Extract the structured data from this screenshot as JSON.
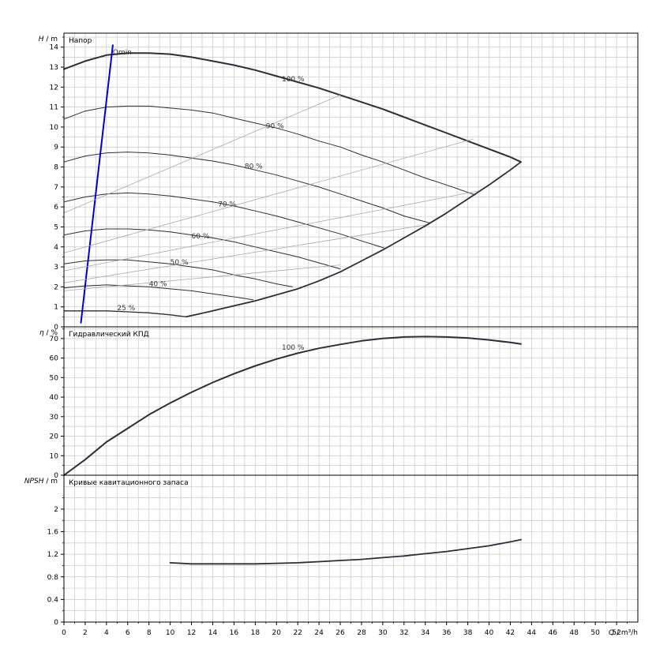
{
  "chart_data": [
    {
      "type": "line",
      "title": "Напор",
      "ylabel_var": "H",
      "ylabel_unit": "m",
      "xlim": [
        0,
        54
      ],
      "ylim": [
        0,
        14.7
      ],
      "xticks": [
        0,
        2,
        4,
        6,
        8,
        10,
        12,
        14,
        16,
        18,
        20,
        22,
        24,
        26,
        28,
        30,
        32,
        34,
        36,
        38,
        40,
        42,
        44,
        46,
        48,
        50,
        52
      ],
      "yticks": [
        0,
        1,
        2,
        3,
        4,
        5,
        6,
        7,
        8,
        9,
        10,
        11,
        12,
        13,
        14
      ],
      "grid": true,
      "series": [
        {
          "name": "100 %",
          "label_at": [
            20.5,
            12.4
          ],
          "width": 2.0,
          "x": [
            0,
            2,
            4,
            6,
            8,
            10,
            12,
            14,
            16,
            18,
            20,
            22,
            24,
            26,
            28,
            30,
            32,
            34,
            36,
            38,
            40,
            42,
            43
          ],
          "y": [
            12.9,
            13.3,
            13.6,
            13.7,
            13.7,
            13.65,
            13.5,
            13.3,
            13.1,
            12.85,
            12.55,
            12.25,
            11.95,
            11.6,
            11.25,
            10.9,
            10.5,
            10.1,
            9.7,
            9.3,
            8.9,
            8.5,
            8.25
          ]
        },
        {
          "name": "90 %",
          "label_at": [
            19.0,
            10.05
          ],
          "width": 1.0,
          "x": [
            0,
            2,
            4,
            6,
            8,
            10,
            12,
            14,
            16,
            18,
            20,
            22,
            24,
            26,
            28,
            30,
            32,
            34,
            36,
            38.7
          ],
          "y": [
            10.4,
            10.8,
            11.0,
            11.05,
            11.05,
            10.95,
            10.85,
            10.7,
            10.45,
            10.2,
            9.95,
            9.65,
            9.3,
            9.0,
            8.6,
            8.25,
            7.85,
            7.45,
            7.1,
            6.6
          ]
        },
        {
          "name": "80 %",
          "label_at": [
            17.0,
            8.05
          ],
          "width": 1.0,
          "x": [
            0,
            2,
            4,
            6,
            8,
            10,
            12,
            14,
            16,
            18,
            20,
            22,
            24,
            26,
            28,
            30,
            32,
            34.4
          ],
          "y": [
            8.25,
            8.55,
            8.7,
            8.75,
            8.7,
            8.6,
            8.45,
            8.3,
            8.1,
            7.85,
            7.6,
            7.3,
            7.0,
            6.65,
            6.3,
            5.95,
            5.55,
            5.2
          ]
        },
        {
          "name": "70 %",
          "label_at": [
            14.5,
            6.15
          ],
          "width": 1.0,
          "x": [
            0,
            2,
            4,
            6,
            8,
            10,
            12,
            14,
            16,
            18,
            20,
            22,
            24,
            26,
            28,
            30.1
          ],
          "y": [
            6.25,
            6.5,
            6.65,
            6.7,
            6.65,
            6.55,
            6.4,
            6.25,
            6.05,
            5.8,
            5.55,
            5.25,
            4.95,
            4.65,
            4.3,
            3.95
          ]
        },
        {
          "name": "60 %",
          "label_at": [
            12.0,
            4.55
          ],
          "width": 1.0,
          "x": [
            0,
            2,
            4,
            6,
            8,
            10,
            12,
            14,
            16,
            18,
            20,
            22,
            24,
            26
          ],
          "y": [
            4.6,
            4.8,
            4.9,
            4.9,
            4.85,
            4.75,
            4.6,
            4.45,
            4.25,
            4.0,
            3.75,
            3.5,
            3.2,
            2.9
          ]
        },
        {
          "name": "50 %",
          "label_at": [
            10.0,
            3.25
          ],
          "width": 1.0,
          "x": [
            0,
            2,
            4,
            6,
            8,
            10,
            12,
            14,
            16,
            18,
            20,
            21.5
          ],
          "y": [
            3.15,
            3.3,
            3.35,
            3.35,
            3.25,
            3.15,
            3.0,
            2.85,
            2.6,
            2.4,
            2.15,
            2.0
          ]
        },
        {
          "name": "40 %",
          "label_at": [
            8.0,
            2.15
          ],
          "width": 1.0,
          "x": [
            0,
            2,
            4,
            6,
            8,
            10,
            12,
            14,
            16,
            17.8
          ],
          "y": [
            1.95,
            2.05,
            2.1,
            2.05,
            2.0,
            1.9,
            1.8,
            1.65,
            1.5,
            1.35
          ]
        },
        {
          "name": "25 %",
          "label_at": [
            5.0,
            0.95
          ],
          "width": 1.3,
          "x": [
            0,
            2,
            4,
            6,
            8,
            10,
            11.5
          ],
          "y": [
            0.8,
            0.8,
            0.8,
            0.75,
            0.7,
            0.6,
            0.5
          ]
        },
        {
          "name": "limit",
          "width": 1.8,
          "x": [
            11.5,
            14,
            16,
            18,
            20,
            22,
            24,
            26,
            28,
            30,
            32,
            34,
            36,
            38,
            40,
            42,
            43
          ],
          "y": [
            0.5,
            0.8,
            1.05,
            1.3,
            1.6,
            1.9,
            2.3,
            2.75,
            3.3,
            3.85,
            4.45,
            5.05,
            5.7,
            6.4,
            7.1,
            7.85,
            8.25
          ]
        },
        {
          "name": "Qmin",
          "label_at": [
            4.6,
            13.75
          ],
          "color": "#0000cc",
          "width": 2.0,
          "x": [
            1.6,
            4.6
          ],
          "y": [
            0.2,
            14.1
          ]
        },
        {
          "name": "iso1",
          "color": "#aaaaaa",
          "width": 0.8,
          "x": [
            0,
            26
          ],
          "y": [
            5.7,
            11.6
          ]
        },
        {
          "name": "iso2",
          "color": "#aaaaaa",
          "width": 0.8,
          "x": [
            0,
            38.5
          ],
          "y": [
            3.7,
            9.4
          ]
        },
        {
          "name": "iso3",
          "color": "#aaaaaa",
          "width": 0.8,
          "x": [
            0,
            39
          ],
          "y": [
            2.8,
            6.8
          ]
        },
        {
          "name": "iso4",
          "color": "#aaaaaa",
          "width": 0.8,
          "x": [
            0,
            34
          ],
          "y": [
            2.2,
            5.1
          ]
        },
        {
          "name": "iso5",
          "color": "#aaaaaa",
          "width": 0.8,
          "x": [
            0,
            26
          ],
          "y": [
            1.8,
            3.1
          ]
        }
      ]
    },
    {
      "type": "line",
      "title": "Гидравлический КПД",
      "ylabel_var": "η",
      "ylabel_unit": "%",
      "xlim": [
        0,
        54
      ],
      "ylim": [
        0,
        76
      ],
      "yticks": [
        0,
        10,
        20,
        30,
        40,
        50,
        60,
        70
      ],
      "grid": true,
      "series": [
        {
          "name": "100 %",
          "label_at": [
            20.5,
            65.5
          ],
          "width": 2.0,
          "x": [
            0,
            2,
            4,
            6,
            8,
            10,
            12,
            14,
            16,
            18,
            20,
            22,
            24,
            26,
            28,
            30,
            32,
            34,
            36,
            38,
            40,
            42,
            43
          ],
          "y": [
            0,
            8,
            17,
            24,
            31,
            37,
            42.5,
            47.5,
            52,
            56,
            59.5,
            62.5,
            65,
            67,
            68.8,
            70,
            70.8,
            71,
            70.8,
            70.3,
            69.3,
            68,
            67.2
          ]
        }
      ]
    },
    {
      "type": "line",
      "title": "Кривые кавитационного запаса",
      "ylabel_var": "NPSH",
      "ylabel_unit": "m",
      "xlabel_var": "Q",
      "xlabel_unit": "m³/h",
      "xlim": [
        0,
        54
      ],
      "ylim": [
        0,
        2.6
      ],
      "yticks": [
        0,
        0.4,
        0.8,
        1.2,
        1.6,
        2
      ],
      "grid": true,
      "series": [
        {
          "name": "NPSH",
          "width": 1.8,
          "x": [
            10,
            12,
            14,
            16,
            18,
            20,
            22,
            24,
            26,
            28,
            30,
            32,
            34,
            36,
            38,
            40,
            42,
            43
          ],
          "y": [
            1.05,
            1.03,
            1.03,
            1.03,
            1.03,
            1.04,
            1.05,
            1.07,
            1.09,
            1.11,
            1.14,
            1.17,
            1.21,
            1.25,
            1.3,
            1.35,
            1.42,
            1.46
          ]
        }
      ]
    }
  ]
}
